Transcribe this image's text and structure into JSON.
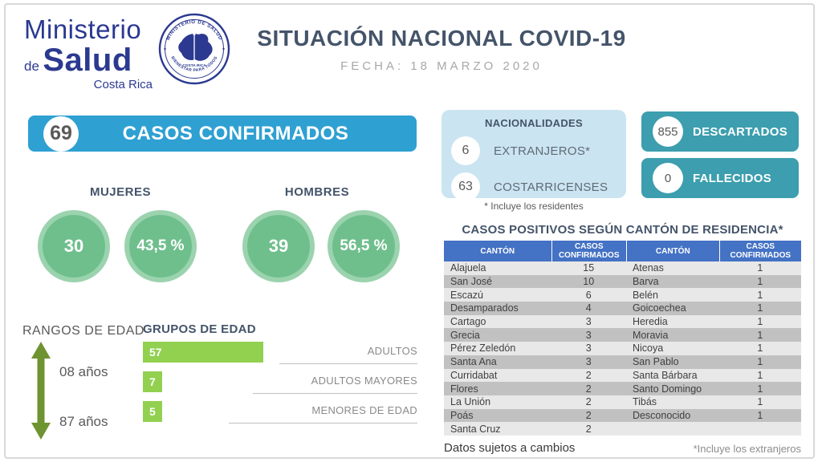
{
  "header": {
    "logo_line1": "Ministerio",
    "logo_de": "de",
    "logo_salud": "Salud",
    "logo_country": "Costa Rica",
    "seal_top_text": "MINISTERIO DE SALUD",
    "seal_center_text": "COSTA RICA",
    "seal_bottom_text": "BIENESTAR PARA TODOS",
    "title": "SITUACIÓN NACIONAL COVID-19",
    "date": "FECHA: 18 MARZO 2020"
  },
  "confirmed": {
    "count": "69",
    "label": "CASOS CONFIRMADOS"
  },
  "gender": {
    "women": {
      "label": "MUJERES",
      "count": "30",
      "percent": "43,5 %"
    },
    "men": {
      "label": "HOMBRES",
      "count": "39",
      "percent": "56,5 %"
    }
  },
  "age_ranges": {
    "title": "RANGOS DE EDAD",
    "min": "08 años",
    "max": "87 años"
  },
  "age_groups": {
    "title": "GRUPOS DE EDAD",
    "bars": [
      {
        "value": 57,
        "label": "ADULTOS"
      },
      {
        "value": 7,
        "label": "ADULTOS MAYORES"
      },
      {
        "value": 5,
        "label": "MENORES DE EDAD"
      }
    ]
  },
  "nationalities": {
    "title": "NACIONALIDADES",
    "items": [
      {
        "count": "6",
        "label": "EXTRANJEROS*"
      },
      {
        "count": "63",
        "label": "COSTARRICENSES"
      }
    ],
    "footnote": "* Incluye los residentes"
  },
  "status_boxes": [
    {
      "count": "855",
      "label": "DESCARTADOS"
    },
    {
      "count": "0",
      "label": "FALLECIDOS"
    }
  ],
  "table": {
    "title": "CASOS POSITIVOS SEGÚN CANTÓN DE RESIDENCIA*",
    "headers": [
      "CANTÓN",
      "CASOS CONFIRMADOS",
      "CANTÓN",
      "CASOS CONFIRMADOS"
    ],
    "rows": [
      [
        "Alajuela",
        "15",
        "Atenas",
        "1"
      ],
      [
        "San José",
        "10",
        "Barva",
        "1"
      ],
      [
        "Escazú",
        "6",
        "Belén",
        "1"
      ],
      [
        "Desamparados",
        "4",
        "Goicoechea",
        "1"
      ],
      [
        "Cartago",
        "3",
        "Heredia",
        "1"
      ],
      [
        "Grecia",
        "3",
        "Moravia",
        "1"
      ],
      [
        "Pérez Zeledón",
        "3",
        "Nicoya",
        "1"
      ],
      [
        "Santa Ana",
        "3",
        "San Pablo",
        "1"
      ],
      [
        "Curridabat",
        "2",
        "Santa Bárbara",
        "1"
      ],
      [
        "Flores",
        "2",
        "Santo Domingo",
        "1"
      ],
      [
        "La Unión",
        "2",
        "Tibás",
        "1"
      ],
      [
        "Poás",
        "2",
        "Desconocido",
        "1"
      ],
      [
        "Santa Cruz",
        "2",
        "",
        ""
      ]
    ],
    "note_left": "Datos sujetos a cambios",
    "note_right": "*Incluye los extranjeros"
  },
  "colors": {
    "banner_blue": "#2fa0d2",
    "teal": "#3c9eae",
    "circle_green": "#6fbf8d",
    "circle_green_ring": "#9bd3ae",
    "bar_green": "#92d050",
    "table_header_blue": "#4472c4",
    "navy": "#2b3990",
    "slate": "#44546a",
    "light_blue_bg": "#cbe4f1",
    "arrow_green": "#6e9331"
  },
  "chart_data": [
    {
      "type": "bar",
      "title": "GRUPOS DE EDAD",
      "orientation": "horizontal",
      "categories": [
        "ADULTOS",
        "ADULTOS MAYORES",
        "MENORES DE EDAD"
      ],
      "values": [
        57,
        7,
        5
      ],
      "xlabel": "",
      "ylabel": "",
      "legend": false,
      "grid": false
    },
    {
      "type": "bar",
      "title": "CASOS CONFIRMADOS POR SEXO",
      "categories": [
        "MUJERES",
        "HOMBRES"
      ],
      "values": [
        30,
        39
      ],
      "percent_labels": [
        "43,5 %",
        "56,5 %"
      ],
      "total": 69
    },
    {
      "type": "table",
      "title": "CASOS POSITIVOS SEGÚN CANTÓN DE RESIDENCIA*",
      "headers": [
        "CANTÓN",
        "CASOS CONFIRMADOS",
        "CANTÓN",
        "CASOS CONFIRMADOS"
      ],
      "rows": [
        [
          "Alajuela",
          15,
          "Atenas",
          1
        ],
        [
          "San José",
          10,
          "Barva",
          1
        ],
        [
          "Escazú",
          6,
          "Belén",
          1
        ],
        [
          "Desamparados",
          4,
          "Goicoechea",
          1
        ],
        [
          "Cartago",
          3,
          "Heredia",
          1
        ],
        [
          "Grecia",
          3,
          "Moravia",
          1
        ],
        [
          "Pérez Zeledón",
          3,
          "Nicoya",
          1
        ],
        [
          "Santa Ana",
          3,
          "San Pablo",
          1
        ],
        [
          "Curridabat",
          2,
          "Santa Bárbara",
          1
        ],
        [
          "Flores",
          2,
          "Santo Domingo",
          1
        ],
        [
          "La Unión",
          2,
          "Tibás",
          1
        ],
        [
          "Poás",
          2,
          "Desconocido",
          1
        ],
        [
          "Santa Cruz",
          2,
          "",
          ""
        ]
      ]
    }
  ]
}
